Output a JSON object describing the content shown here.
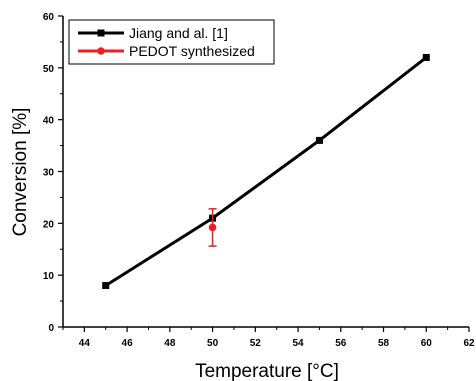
{
  "chart_data": {
    "type": "line",
    "xlabel": "Temperature [°C]",
    "ylabel": "Conversion [%]",
    "xlim": [
      43,
      62
    ],
    "ylim": [
      0,
      60
    ],
    "x_ticks": [
      "44",
      "46",
      "48",
      "50",
      "52",
      "54",
      "56",
      "58",
      "60",
      "62"
    ],
    "y_ticks": [
      "0",
      "10",
      "20",
      "30",
      "40",
      "50",
      "60"
    ],
    "grid": false,
    "legend_position": "top-left",
    "series": [
      {
        "name": "Jiang and al. [1]",
        "color": "#000000",
        "marker": "square",
        "x": [
          45,
          50,
          55,
          60
        ],
        "y": [
          8,
          21,
          36,
          52
        ]
      },
      {
        "name": "PEDOT synthesized",
        "color": "#ee1c25",
        "marker": "circle",
        "x": [
          50
        ],
        "y": [
          19.2
        ],
        "error": [
          3.6
        ]
      }
    ]
  }
}
